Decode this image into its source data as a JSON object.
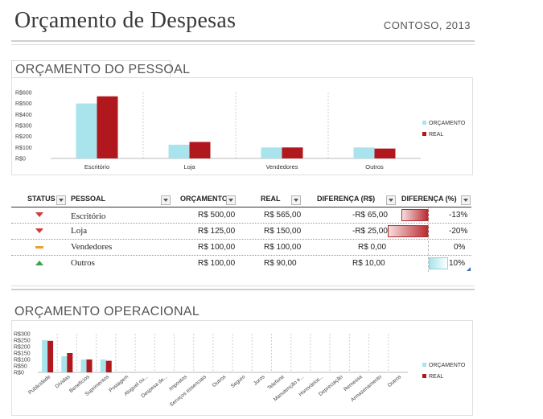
{
  "header": {
    "title": "Orçamento de Despesas",
    "company": "CONTOSO, 2013"
  },
  "personnel": {
    "section_title": "ORÇAMENTO DO PESSOAL",
    "columns": [
      "STATUS",
      "PESSOAL",
      "ORÇAMENTO",
      "REAL",
      "DIFERENÇA (R$)",
      "DIFERENÇA (%)"
    ],
    "rows": [
      {
        "status": "down",
        "name": "Escritório",
        "budget": "R$ 500,00",
        "actual": "R$ 565,00",
        "diff": "-R$ 65,00",
        "pct": "-13%",
        "pct_value": -0.13
      },
      {
        "status": "down",
        "name": "Loja",
        "budget": "R$ 125,00",
        "actual": "R$ 150,00",
        "diff": "-R$ 25,00",
        "pct": "-20%",
        "pct_value": -0.2
      },
      {
        "status": "flat",
        "name": "Vendedores",
        "budget": "R$ 100,00",
        "actual": "R$ 100,00",
        "diff": "R$ 0,00",
        "pct": "0%",
        "pct_value": 0
      },
      {
        "status": "up",
        "name": "Outros",
        "budget": "R$ 100,00",
        "actual": "R$ 90,00",
        "diff": "R$ 10,00",
        "pct": "10%",
        "pct_value": 0.1
      }
    ]
  },
  "operational": {
    "section_title": "ORÇAMENTO OPERACIONAL"
  },
  "colors": {
    "budget": "#a9e3ec",
    "actual": "#b0181e",
    "neg_bar": "#b82a30",
    "pos_bar": "#a9e3ec",
    "status_down": "#d33b3b",
    "status_flat": "#f0a030",
    "status_up": "#3fa050"
  },
  "chart_data": [
    {
      "type": "bar",
      "categories": [
        "Escritório",
        "Loja",
        "Vendedores",
        "Outros"
      ],
      "series": [
        {
          "name": "ORÇAMENTO",
          "values": [
            500,
            125,
            100,
            100
          ]
        },
        {
          "name": "REAL",
          "values": [
            565,
            150,
            100,
            90
          ]
        }
      ],
      "yticks": [
        "R$600",
        "R$500",
        "R$400",
        "R$300",
        "R$200",
        "R$100",
        "R$0"
      ],
      "ylim": [
        0,
        600
      ],
      "grid": "vertical",
      "legend": "right"
    },
    {
      "type": "bar",
      "categories": [
        "Publicidade",
        "Dívidas",
        "Benefícios",
        "Suprimentos",
        "Postagem",
        "Aluguel ou...",
        "Despesa de...",
        "Impostos",
        "Serviços essenciais",
        "Outros",
        "Seguro",
        "Juros",
        "Telefone",
        "Manutenção e...",
        "Honorários...",
        "Depreciação",
        "Remessa",
        "Armazenamento",
        "Outros"
      ],
      "series": [
        {
          "name": "ORÇAMENTO",
          "values": [
            250,
            125,
            100,
            100,
            0,
            0,
            0,
            0,
            0,
            0,
            0,
            0,
            0,
            0,
            0,
            0,
            0,
            0,
            0
          ]
        },
        {
          "name": "REAL",
          "values": [
            245,
            150,
            100,
            90,
            0,
            0,
            0,
            0,
            0,
            0,
            0,
            0,
            0,
            0,
            0,
            0,
            0,
            0,
            0
          ]
        }
      ],
      "yticks": [
        "R$300",
        "R$250",
        "R$200",
        "R$150",
        "R$100",
        "R$50",
        "R$0"
      ],
      "ylim": [
        0,
        300
      ],
      "grid": "vertical",
      "legend": "right"
    }
  ]
}
